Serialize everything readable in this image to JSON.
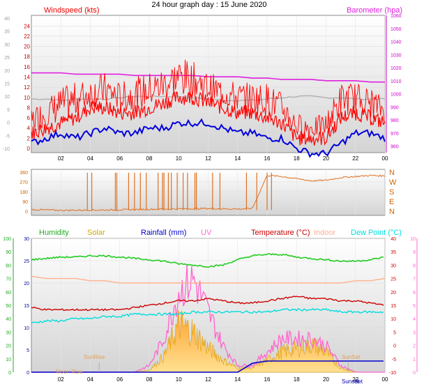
{
  "title": "24 hour graph day : 15 June 2020",
  "colors": {
    "wind": "#ff0000",
    "gust": "#ff0000",
    "avgwind": "#0000dd",
    "baro": "#e020e0",
    "bg_gray": "#b0b0b0",
    "direction": "#e07020",
    "humidity": "#22cc22",
    "solar": "#ccaa00",
    "solar_fill": "#ffc040",
    "rainfall": "#0000cc",
    "uv": "#ff66cc",
    "temperature": "#cc0000",
    "indoor": "#ffb090",
    "dewpoint": "#00dddd"
  },
  "chart_data": [
    {
      "type": "line",
      "name": "wind-baro",
      "legend_left": "Windspeed (kts)",
      "legend_right": "Barometer (hpa)",
      "x_ticks": [
        "02",
        "04",
        "06",
        "08",
        "10",
        "12",
        "14",
        "16",
        "18",
        "20",
        "22",
        "00"
      ],
      "x_tick_hours": [
        2,
        4,
        6,
        8,
        10,
        12,
        14,
        16,
        18,
        20,
        22,
        24
      ],
      "y_left_inner_ticks": [
        "0",
        "2",
        "4",
        "6",
        "8",
        "10",
        "12",
        "14",
        "16",
        "18",
        "20",
        "22",
        "24"
      ],
      "y_left_outer_ticks": [
        "-10",
        "-5",
        "0",
        "5",
        "10",
        "15",
        "20",
        "25",
        "30",
        "35",
        "40"
      ],
      "y_right_ticks": [
        "960",
        "970",
        "980",
        "990",
        "1000",
        "1010",
        "1020",
        "1030",
        "1040",
        "1050",
        "1060"
      ],
      "ylim_wind": [
        0,
        25
      ],
      "ylim_baro": [
        955,
        1060
      ],
      "hours": [
        0,
        1,
        2,
        3,
        4,
        5,
        6,
        7,
        8,
        9,
        10,
        11,
        12,
        13,
        14,
        15,
        16,
        17,
        18,
        19,
        20,
        21,
        22,
        23,
        24
      ],
      "gust": [
        5,
        7,
        9,
        10,
        11,
        12,
        10,
        11,
        12,
        13,
        15,
        14,
        12,
        11,
        10,
        10,
        10,
        8,
        4,
        3,
        4,
        10,
        10,
        9,
        7
      ],
      "wind": [
        3,
        4,
        5,
        6,
        8,
        8,
        7,
        7,
        8,
        9,
        10,
        10,
        9,
        8,
        7,
        7,
        6,
        5,
        2,
        2,
        2,
        6,
        7,
        6,
        5
      ],
      "avg_wind": [
        1,
        2,
        3,
        2,
        3,
        4,
        3,
        3,
        4,
        4,
        5,
        5,
        5,
        4,
        3,
        3,
        2,
        2,
        0,
        -1,
        -1,
        1,
        3,
        3,
        2
      ],
      "barometer": [
        1016,
        1016,
        1016,
        1015,
        1015,
        1015,
        1015,
        1014,
        1014,
        1014,
        1014,
        1014,
        1013,
        1013,
        1013,
        1012,
        1012,
        1011,
        1011,
        1011,
        1010,
        1010,
        1010,
        1009,
        1009
      ],
      "gray_series": [
        996,
        996,
        995,
        996,
        996,
        996,
        997,
        998,
        998,
        998,
        998,
        997,
        996,
        995,
        995,
        995,
        996,
        997,
        998,
        998,
        997,
        997,
        996,
        996,
        996
      ]
    },
    {
      "type": "line",
      "name": "wind-direction",
      "y_left_ticks": [
        "0",
        "90",
        "180",
        "270",
        "360"
      ],
      "y_right_labels": [
        "N",
        "E",
        "S",
        "W",
        "N"
      ],
      "ylim": [
        0,
        360
      ],
      "hours": [
        0,
        2,
        4,
        6,
        8,
        10,
        12,
        14,
        15,
        16,
        17,
        18,
        19,
        20,
        21,
        22,
        23,
        24
      ],
      "direction": [
        15,
        8,
        10,
        12,
        18,
        22,
        25,
        20,
        25,
        330,
        320,
        300,
        280,
        285,
        310,
        320,
        330,
        325
      ],
      "spike_hours": [
        3.8,
        4.1,
        5.7,
        5.8,
        6.6,
        7.0,
        7.4,
        7.8,
        8.6,
        8.9,
        9.0,
        9.3,
        9.5,
        9.9,
        10.3,
        10.6,
        11.1,
        11.2,
        12.3,
        12.8,
        14.6,
        15.3,
        16.0,
        16.3
      ]
    },
    {
      "type": "area",
      "name": "temperature-solar",
      "legend": [
        "Humidity",
        "Solar",
        "Rainfall (mm)",
        "UV",
        "Temperature (°C)",
        "Indoor",
        "Dew Point (°C)"
      ],
      "y_humidity_ticks": [
        "0",
        "10",
        "20",
        "30",
        "40",
        "50",
        "60",
        "70",
        "80",
        "90",
        "100"
      ],
      "y_temp_ticks": [
        "0",
        "5",
        "10",
        "15",
        "20",
        "25",
        "30"
      ],
      "y_right_temp_ticks": [
        "-10",
        "-5",
        "0",
        "5",
        "10",
        "15",
        "20",
        "25",
        "30",
        "35",
        "40"
      ],
      "y_right_uv_ticks": [
        "0",
        "1",
        "2",
        "3",
        "4",
        "5",
        "6",
        "7",
        "8",
        "9",
        "10"
      ],
      "x_ticks": [
        "02",
        "04",
        "06",
        "08",
        "10",
        "12",
        "14",
        "16",
        "18",
        "20",
        "22",
        "00"
      ],
      "annotations": [
        "SunRise",
        "Moon Rise",
        "SunSet",
        "Sunset",
        "Set"
      ],
      "hours": [
        0,
        1,
        2,
        3,
        4,
        5,
        6,
        7,
        8,
        9,
        10,
        11,
        12,
        13,
        14,
        15,
        16,
        17,
        18,
        19,
        20,
        21,
        22,
        23,
        24
      ],
      "humidity": [
        84,
        85,
        86,
        86,
        87,
        87,
        86,
        85,
        84,
        83,
        81,
        80,
        79,
        80,
        84,
        87,
        88,
        88,
        86,
        85,
        84,
        83,
        83,
        84,
        86
      ],
      "temperature": [
        14.5,
        14,
        14,
        14,
        14,
        14,
        14,
        14.5,
        15,
        15.5,
        16,
        16,
        16.5,
        16,
        15.5,
        15.5,
        16,
        16.5,
        17,
        16.5,
        16.5,
        16,
        16,
        15.5,
        15
      ],
      "dewpoint": [
        11,
        11.5,
        11.5,
        12,
        12,
        12.5,
        12.5,
        13,
        13,
        13,
        13,
        13.5,
        13.5,
        13.5,
        13.5,
        13.5,
        13.5,
        14,
        14,
        14,
        14,
        13.5,
        13.5,
        13.5,
        13.5
      ],
      "indoor": [
        21.5,
        21,
        21,
        21,
        20.5,
        20.5,
        20,
        20,
        20,
        20,
        20,
        20,
        20,
        20,
        20,
        20,
        20,
        20,
        20,
        20,
        20,
        20,
        20.5,
        20.5,
        21
      ],
      "solar": [
        0,
        0,
        0,
        0,
        0,
        0,
        0,
        0,
        0.5,
        4,
        12,
        10,
        6,
        3,
        1,
        1,
        3,
        5,
        6,
        7,
        5,
        1,
        0,
        0,
        0
      ],
      "uv": [
        0,
        0,
        0,
        0,
        0,
        0,
        0,
        0,
        0.5,
        2.5,
        6,
        7,
        4.5,
        2,
        0.5,
        0.5,
        1.5,
        2.5,
        2.5,
        2.5,
        2,
        0.5,
        0,
        0,
        0
      ],
      "rainfall": [
        0,
        0,
        0,
        0,
        0,
        0,
        0,
        0,
        0,
        0,
        0,
        0,
        0,
        0,
        0,
        2,
        2.5,
        2.5,
        2.5,
        2.5,
        2.5,
        2.5,
        2.5,
        2.5,
        2.5
      ]
    }
  ]
}
